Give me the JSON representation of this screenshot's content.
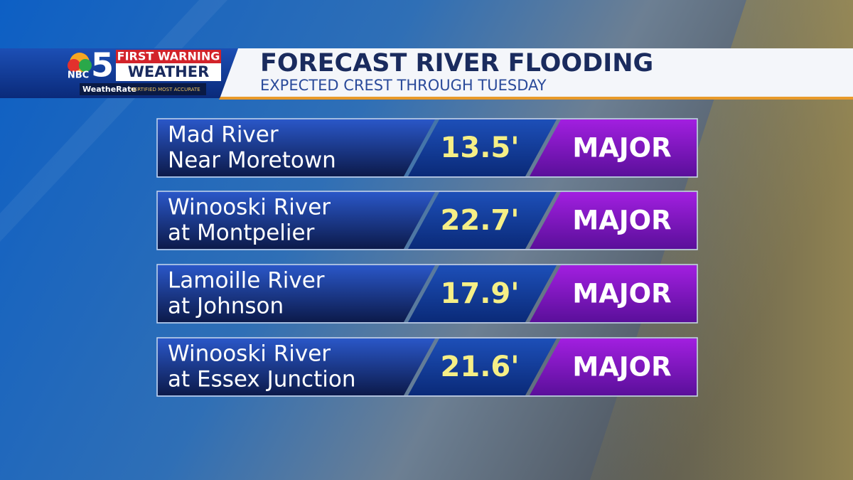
{
  "logo": {
    "network": "NBC",
    "channel": "5",
    "line1": "FIRST WARNING",
    "line2": "WEATHER",
    "badge": "WeatheRate",
    "badge_note": "CERTIFIED MOST ACCURATE"
  },
  "header": {
    "title": "FORECAST RIVER FLOODING",
    "subtitle": "EXPECTED CREST THROUGH TUESDAY"
  },
  "rows": [
    {
      "name": [
        "Mad River",
        "Near Moretown"
      ],
      "crest": "13.5'",
      "level": "MAJOR"
    },
    {
      "name": [
        "Winooski River",
        "at Montpelier"
      ],
      "crest": "22.7'",
      "level": "MAJOR"
    },
    {
      "name": [
        "Lamoille River",
        "at Johnson"
      ],
      "crest": "17.9'",
      "level": "MAJOR"
    },
    {
      "name": [
        "Winooski River",
        "at Essex Junction"
      ],
      "crest": "21.6'",
      "level": "MAJOR"
    }
  ]
}
